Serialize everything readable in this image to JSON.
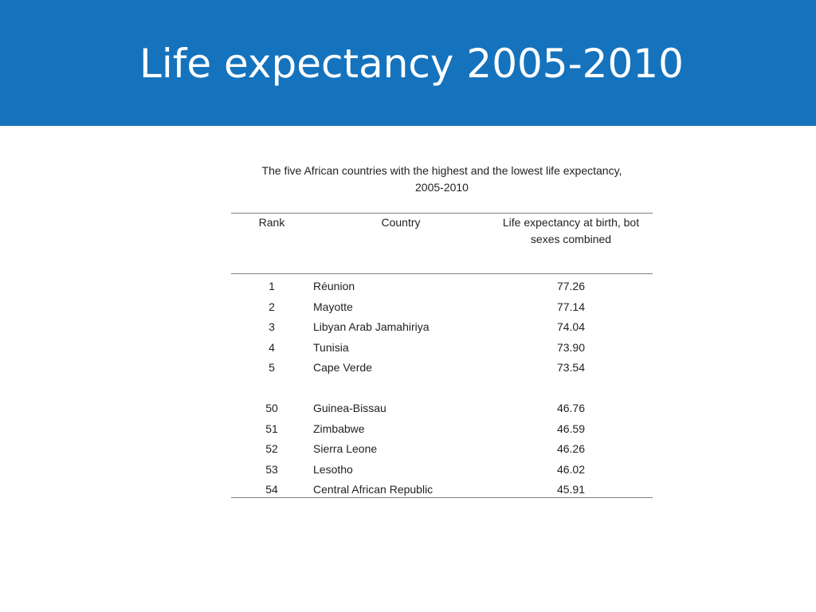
{
  "slide": {
    "title": "Life expectancy 2005-2010"
  },
  "table": {
    "caption_line1": "The five African countries with the highest and the lowest life expectancy,",
    "caption_line2": "2005-2010",
    "header_rank": "Rank",
    "header_country": "Country",
    "header_life_line1": "Life expectancy at birth, bot",
    "header_life_line2": "sexes combined",
    "top_rows": [
      {
        "rank": "1",
        "country": "Réunion",
        "life": "77.26"
      },
      {
        "rank": "2",
        "country": "Mayotte",
        "life": "77.14"
      },
      {
        "rank": "3",
        "country": "Libyan Arab Jamahiriya",
        "life": "74.04"
      },
      {
        "rank": "4",
        "country": "Tunisia",
        "life": "73.90"
      },
      {
        "rank": "5",
        "country": "Cape Verde",
        "life": "73.54"
      }
    ],
    "bottom_rows": [
      {
        "rank": "50",
        "country": "Guinea-Bissau",
        "life": "46.76"
      },
      {
        "rank": "51",
        "country": "Zimbabwe",
        "life": "46.59"
      },
      {
        "rank": "52",
        "country": "Sierra Leone",
        "life": "46.26"
      },
      {
        "rank": "53",
        "country": "Lesotho",
        "life": "46.02"
      },
      {
        "rank": "54",
        "country": "Central African Republic",
        "life": "45.91"
      }
    ]
  },
  "colors": {
    "header_band": "#1573bd",
    "title_text": "#ffffff",
    "rule": "#7f7f7f"
  }
}
